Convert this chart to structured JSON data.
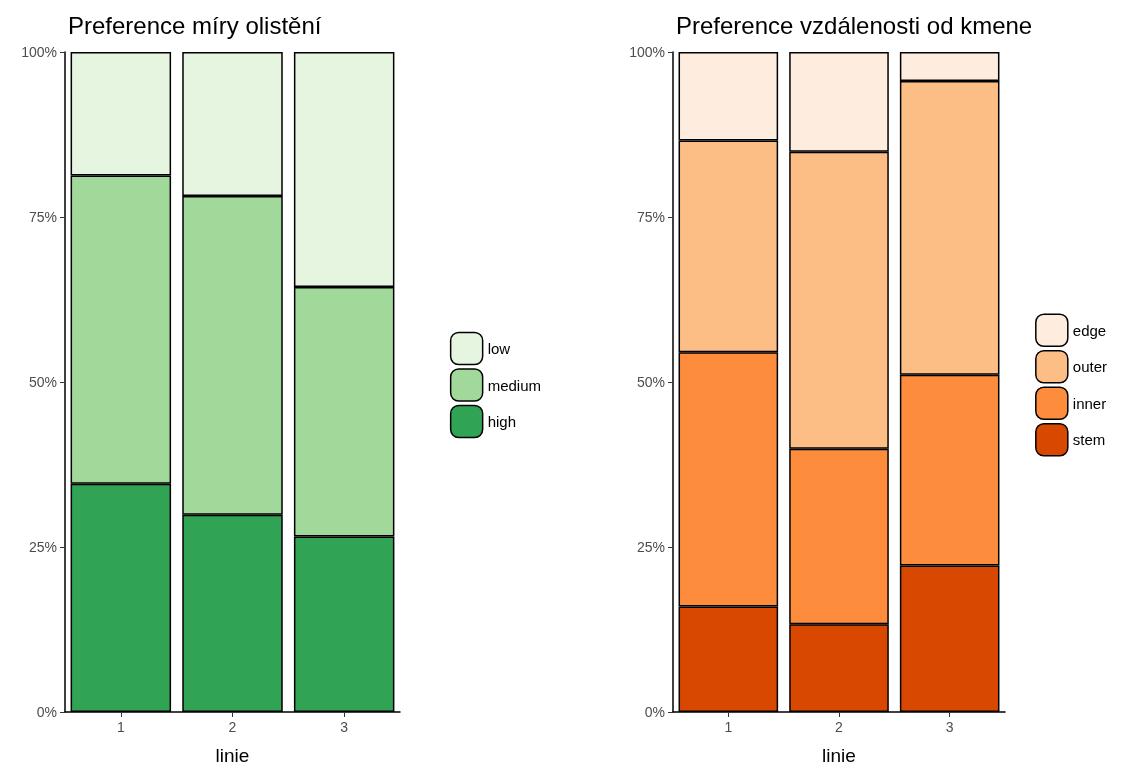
{
  "chart_data": [
    {
      "type": "bar",
      "title": "Preference míry olistění",
      "xlabel": "linie",
      "categories": [
        "1",
        "2",
        "3"
      ],
      "stacked": true,
      "ylim": [
        0,
        100
      ],
      "yticks": [
        {
          "value": 0,
          "label": "0%"
        },
        {
          "value": 25,
          "label": "25%"
        },
        {
          "value": 50,
          "label": "50%"
        },
        {
          "value": 75,
          "label": "75%"
        },
        {
          "value": 100,
          "label": "100%"
        }
      ],
      "grid": false,
      "legend": "right",
      "series": [
        {
          "name": "high",
          "color": "#31a354",
          "values": [
            34.6,
            29.9,
            26.6
          ]
        },
        {
          "name": "medium",
          "color": "#a1d99b",
          "values": [
            46.7,
            48.3,
            37.8
          ]
        },
        {
          "name": "low",
          "color": "#e5f5e0",
          "values": [
            18.7,
            21.8,
            35.6
          ]
        }
      ]
    },
    {
      "type": "bar",
      "title": "Preference vzdálenosti od kmene",
      "xlabel": "linie",
      "categories": [
        "1",
        "2",
        "3"
      ],
      "stacked": true,
      "ylim": [
        0,
        100
      ],
      "yticks": [
        {
          "value": 0,
          "label": "0%"
        },
        {
          "value": 25,
          "label": "25%"
        },
        {
          "value": 50,
          "label": "50%"
        },
        {
          "value": 75,
          "label": "75%"
        },
        {
          "value": 100,
          "label": "100%"
        }
      ],
      "grid": false,
      "legend": "right",
      "series": [
        {
          "name": "stem",
          "color": "#d94801",
          "values": [
            16.0,
            13.3,
            22.2
          ]
        },
        {
          "name": "inner",
          "color": "#fd8d3c",
          "values": [
            38.5,
            26.6,
            28.9
          ]
        },
        {
          "name": "outer",
          "color": "#fdbe85",
          "values": [
            32.1,
            45.0,
            44.5
          ]
        },
        {
          "name": "edge",
          "color": "#feedde",
          "values": [
            13.4,
            15.1,
            4.4
          ]
        }
      ]
    }
  ]
}
